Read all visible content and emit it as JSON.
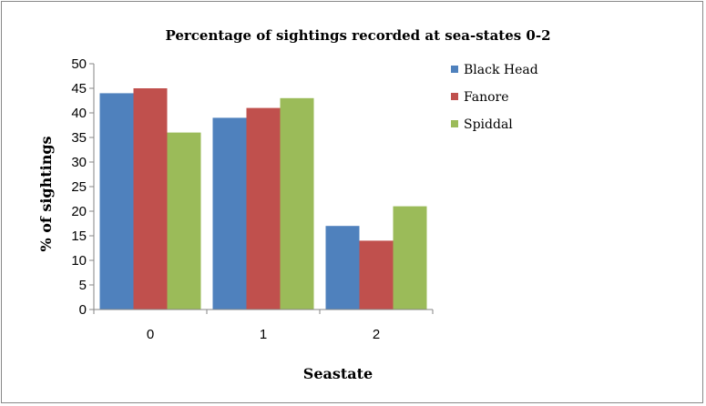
{
  "chart_data": {
    "type": "bar",
    "title": "Percentage of sightings recorded at sea-states 0-2",
    "xlabel": "Seastate",
    "ylabel": "% of sightings",
    "categories": [
      "0",
      "1",
      "2"
    ],
    "series": [
      {
        "name": "Black Head",
        "values": [
          44,
          39,
          17
        ],
        "color": "#4F81BD"
      },
      {
        "name": "Fanore",
        "values": [
          45,
          41,
          14
        ],
        "color": "#C0504D"
      },
      {
        "name": "Spiddal",
        "values": [
          36,
          43,
          21
        ],
        "color": "#9BBB59"
      }
    ],
    "ylim": [
      0,
      50
    ],
    "yticks": [
      0,
      5,
      10,
      15,
      20,
      25,
      30,
      35,
      40,
      45,
      50
    ],
    "grid": false,
    "legend": "right"
  }
}
